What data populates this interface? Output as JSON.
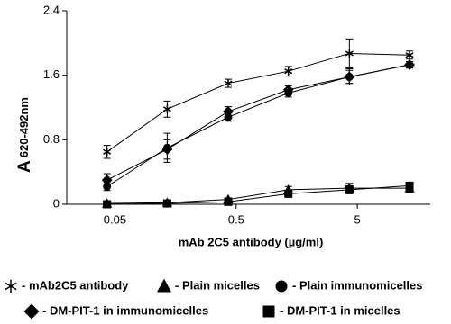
{
  "chart_data": {
    "type": "line",
    "x_label": "mAb 2C5 antibody (µg/ml)",
    "y_label": "A",
    "y_label_subscript": "620-492nm",
    "log_x": true,
    "xlim": [
      0.02,
      20
    ],
    "xticks": [
      0.05,
      0.5,
      5
    ],
    "ylim": [
      0,
      2.4
    ],
    "yticks": [
      0,
      0.8,
      1.6,
      2.4
    ],
    "x": [
      0.043,
      0.135,
      0.43,
      1.35,
      4.3,
      13.5
    ],
    "series": [
      {
        "name": "- mAb2C5 antibody",
        "marker": "star",
        "color": "#000000",
        "values": [
          0.65,
          1.18,
          1.5,
          1.65,
          1.87,
          1.85
        ],
        "errors": [
          0.08,
          0.1,
          0.05,
          0.06,
          0.18,
          0.05
        ]
      },
      {
        "name": "- Plain micelles",
        "marker": "triangle",
        "color": "#000000",
        "values": [
          0.01,
          0.02,
          0.06,
          0.18,
          0.2,
          0.2
        ],
        "errors": [
          0.01,
          0.01,
          0.02,
          0.04,
          0.06,
          0.05
        ]
      },
      {
        "name": "- Plain immunomicelles",
        "marker": "circle",
        "color": "#000000",
        "values": [
          0.22,
          0.7,
          1.08,
          1.38,
          1.58,
          1.73
        ],
        "errors": [
          0.05,
          0.18,
          0.05,
          0.05,
          0.1,
          0.04
        ]
      },
      {
        "name": "- DM-PIT-1 in immunomicelles",
        "marker": "diamond",
        "color": "#000000",
        "values": [
          0.3,
          0.68,
          1.15,
          1.42,
          1.58,
          1.73
        ],
        "errors": [
          0.08,
          0.12,
          0.06,
          0.05,
          0.08,
          0.04
        ]
      },
      {
        "name": "- DM-PIT-1 in micelles",
        "marker": "square",
        "color": "#000000",
        "values": [
          0.0,
          0.01,
          0.03,
          0.13,
          0.18,
          0.23
        ],
        "errors": [
          0.01,
          0.01,
          0.02,
          0.03,
          0.05,
          0.03
        ]
      }
    ]
  }
}
